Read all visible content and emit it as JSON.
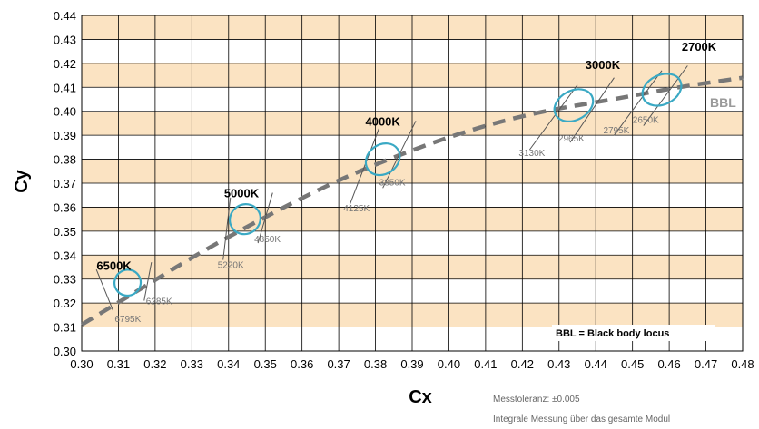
{
  "chart_data": {
    "type": "scatter",
    "xlabel": "Cx",
    "ylabel": "Cy",
    "xlim": [
      0.3,
      0.48
    ],
    "ylim": [
      0.3,
      0.44
    ],
    "x_ticks": [
      "0.30",
      "0.31",
      "0.32",
      "0.33",
      "0.34",
      "0.35",
      "0.36",
      "0.37",
      "0.38",
      "0.39",
      "0.40",
      "0.41",
      "0.42",
      "0.43",
      "0.44",
      "0.45",
      "0.46",
      "0.47",
      "0.48"
    ],
    "y_ticks": [
      "0.30",
      "0.31",
      "0.32",
      "0.33",
      "0.34",
      "0.35",
      "0.36",
      "0.37",
      "0.38",
      "0.39",
      "0.40",
      "0.41",
      "0.42",
      "0.43",
      "0.44"
    ],
    "grid": true,
    "band_color": "#fbe3c2",
    "ellipse_color": "#3aa9c4",
    "bbl_color": "#777777",
    "bbl_curve": [
      [
        0.3,
        0.311
      ],
      [
        0.313,
        0.323
      ],
      [
        0.331,
        0.34
      ],
      [
        0.35,
        0.356
      ],
      [
        0.368,
        0.37
      ],
      [
        0.385,
        0.381
      ],
      [
        0.405,
        0.392
      ],
      [
        0.425,
        0.4
      ],
      [
        0.445,
        0.405
      ],
      [
        0.462,
        0.41
      ],
      [
        0.48,
        0.414
      ]
    ],
    "bbl_label": "BBL",
    "ellipses": [
      {
        "label": "6500K",
        "cx": 0.3125,
        "cy": 0.3285,
        "rx": 0.0035,
        "ry": 0.0055,
        "angle": 58
      },
      {
        "label": "5000K",
        "cx": 0.3445,
        "cy": 0.355,
        "rx": 0.004,
        "ry": 0.0065,
        "angle": 55
      },
      {
        "label": "4000K",
        "cx": 0.382,
        "cy": 0.38,
        "rx": 0.004,
        "ry": 0.0075,
        "angle": 55
      },
      {
        "label": "3000K",
        "cx": 0.434,
        "cy": 0.4025,
        "rx": 0.004,
        "ry": 0.0085,
        "angle": 62
      },
      {
        "label": "2700K",
        "cx": 0.458,
        "cy": 0.409,
        "rx": 0.004,
        "ry": 0.0085,
        "angle": 64
      }
    ],
    "bounds": [
      {
        "label": "6795K",
        "x1": 0.3085,
        "y1": 0.317,
        "x2": 0.304,
        "y2": 0.334
      },
      {
        "label": "6285K",
        "x1": 0.317,
        "y1": 0.321,
        "x2": 0.319,
        "y2": 0.337
      },
      {
        "label": "5220K",
        "x1": 0.3385,
        "y1": 0.338,
        "x2": 0.3405,
        "y2": 0.364
      },
      {
        "label": "4850K",
        "x1": 0.348,
        "y1": 0.345,
        "x2": 0.352,
        "y2": 0.366
      },
      {
        "label": "4125K",
        "x1": 0.373,
        "y1": 0.361,
        "x2": 0.381,
        "y2": 0.393
      },
      {
        "label": "3850K",
        "x1": 0.382,
        "y1": 0.368,
        "x2": 0.391,
        "y2": 0.396
      },
      {
        "label": "3130K",
        "x1": 0.422,
        "y1": 0.384,
        "x2": 0.435,
        "y2": 0.411
      },
      {
        "label": "2965K",
        "x1": 0.433,
        "y1": 0.387,
        "x2": 0.445,
        "y2": 0.414
      },
      {
        "label": "2795K",
        "x1": 0.445,
        "y1": 0.39,
        "x2": 0.458,
        "y2": 0.417
      },
      {
        "label": "2650K",
        "x1": 0.453,
        "y1": 0.394,
        "x2": 0.465,
        "y2": 0.419
      }
    ],
    "legend_text": "BBL = Black body locus",
    "notes": [
      "Messtoleranz: ±0.005",
      "Integrale Messung über das gesamte Modul"
    ]
  }
}
